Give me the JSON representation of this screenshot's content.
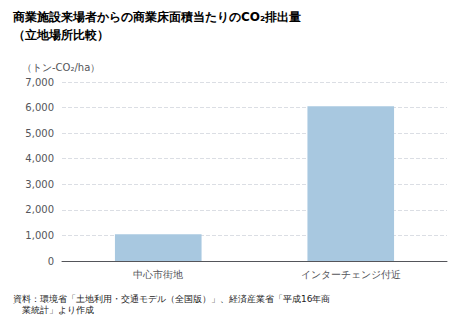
{
  "chart_data": {
    "type": "bar",
    "title": "商業施設来場者からの商業床面積当たりのCO₂排出量",
    "subtitle": "（立地場所比較）",
    "ylabel": "（トン-CO₂/ha）",
    "categories": [
      "中心市街地",
      "インターチェンジ付近"
    ],
    "values": [
      1050,
      6050
    ],
    "color": "#a8c8e0",
    "ylim": [
      0,
      7000
    ],
    "yticks": [
      0,
      {
        "value": 1000,
        "label": "1,000"
      },
      {
        "value": 2000,
        "label": "2,000"
      },
      {
        "value": 3000,
        "label": "3,000"
      },
      {
        "value": 4000,
        "label": "4,000"
      },
      {
        "value": 5000,
        "label": "5,000"
      },
      {
        "value": 6000,
        "label": "6,000"
      },
      {
        "value": 7000,
        "label": "7,000"
      }
    ],
    "grid": true,
    "annotations": [
      "資料：環境省「土地利用・交通モデル（全国版）」、経済産業省「平成16年商",
      "　業統計」より作成"
    ]
  }
}
